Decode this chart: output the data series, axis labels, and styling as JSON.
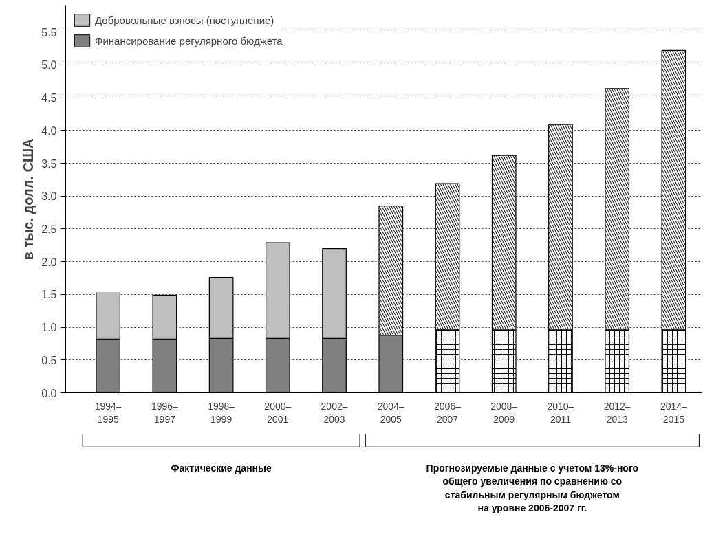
{
  "chart_data": {
    "type": "bar",
    "stacked": true,
    "ylabel": "в тыс. долл. США",
    "categories": [
      "1994–\n1995",
      "1996–\n1997",
      "1998–\n1999",
      "2000–\n2001",
      "2002–\n2003",
      "2004–\n2005",
      "2006–\n2007",
      "2008–\n2009",
      "2010–\n2011",
      "2012–\n2013",
      "2014–\n2015"
    ],
    "series": [
      {
        "name": "Финансирование регулярного бюджета",
        "color": "#808080",
        "colors": [
          "#808080",
          "#808080",
          "#808080",
          "#808080",
          "#808080",
          "#808080",
          "#ffffff",
          "#ffffff",
          "#ffffff",
          "#ffffff",
          "#ffffff"
        ],
        "values": [
          0.82,
          0.82,
          0.83,
          0.83,
          0.83,
          0.88,
          0.96,
          0.97,
          0.97,
          0.97,
          0.97
        ]
      },
      {
        "name": "Добровольные взносы (поступление)",
        "color": "#c0c0c0",
        "colors": [
          "#c0c0c0",
          "#c0c0c0",
          "#c0c0c0",
          "#c0c0c0",
          "#c0c0c0",
          "#ffffff",
          "#ffffff",
          "#ffffff",
          "#ffffff",
          "#ffffff",
          "#ffffff"
        ],
        "values": [
          0.7,
          0.67,
          0.93,
          1.46,
          1.37,
          1.97,
          2.23,
          2.65,
          3.12,
          3.67,
          4.25
        ]
      }
    ],
    "ylim": [
      0,
      5.9
    ],
    "yticks": [
      {
        "value": 0,
        "label": "0.0"
      },
      {
        "value": 0.5,
        "label": "0.5"
      },
      {
        "value": 1,
        "label": "1.0"
      },
      {
        "value": 1.5,
        "label": "1.5"
      },
      {
        "value": 2,
        "label": "2.0"
      },
      {
        "value": 2.5,
        "label": "2.5"
      },
      {
        "value": 3,
        "label": "3.0"
      },
      {
        "value": 3.5,
        "label": "3.5"
      },
      {
        "value": 4,
        "label": "4.0"
      },
      {
        "value": 4.5,
        "label": "4.5"
      },
      {
        "value": 5,
        "label": "5.0"
      },
      {
        "value": 5.5,
        "label": "5.5"
      }
    ],
    "grid": "y",
    "legend": "top left",
    "annotations": [
      "Фактические данные",
      "Прогнозируемые данные с учетом 13%-ного\nобщего увеличения по сравнению со\nстабильным регулярным бюджетом\nна уровне 2006-2007 гг."
    ]
  }
}
